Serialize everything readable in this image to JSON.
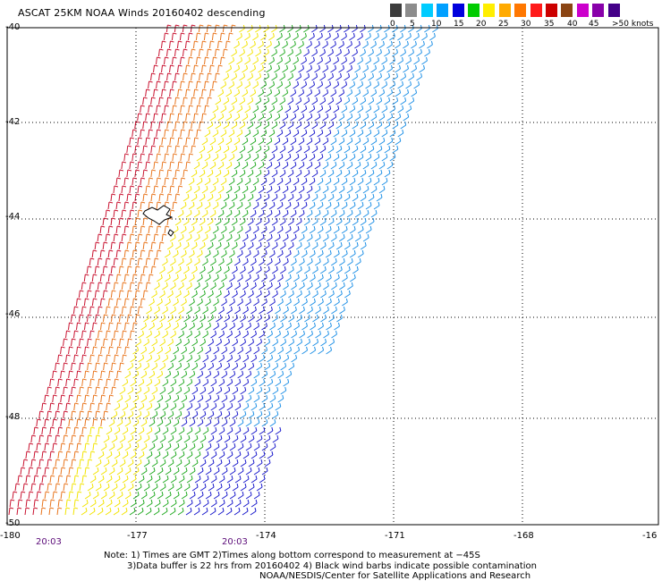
{
  "title": "ASCAT 25KM NOAA Winds 20160402 descending",
  "legend": {
    "ticks": [
      "0",
      "5",
      "10",
      "15",
      "20",
      "25",
      "30",
      "35",
      "40",
      "45",
      ">50 knots"
    ],
    "colors": [
      "#3c3c3c",
      "#8c8c8c",
      "#00ccff",
      "#00a0ff",
      "#0000dd",
      "#00cc00",
      "#ffee00",
      "#ffaa00",
      "#ff7700",
      "#ff1a1a",
      "#cc0000",
      "#8b4513",
      "#cc00cc",
      "#8800aa",
      "#440088"
    ]
  },
  "axes": {
    "lon_labels": [
      "-180",
      "-177",
      "-174",
      "-171",
      "-168",
      "-16"
    ],
    "lat_labels": [
      "-40",
      "-42",
      "-44",
      "-46",
      "-48",
      "-50"
    ]
  },
  "times": [
    "20:03",
    "20:03"
  ],
  "notes": {
    "line1": "Note: 1) Times are GMT 2)Times along bottom correspond to measurement at −45S",
    "line2": "3)Data buffer is 22 hrs from 20160402 4) Black wind barbs indicate possible contamination",
    "line3": "NOAA/NESDIS/Center for Satellite Applications and Research"
  },
  "wind_bands": [
    {
      "name": "band-red",
      "color": "#c8102e"
    },
    {
      "name": "band-orange",
      "color": "#e8741c"
    },
    {
      "name": "band-yellow",
      "color": "#f2e400"
    },
    {
      "name": "band-green",
      "color": "#22aa22"
    },
    {
      "name": "band-blue",
      "color": "#1a1acc"
    },
    {
      "name": "band-lightblue",
      "color": "#1e90e6"
    }
  ]
}
